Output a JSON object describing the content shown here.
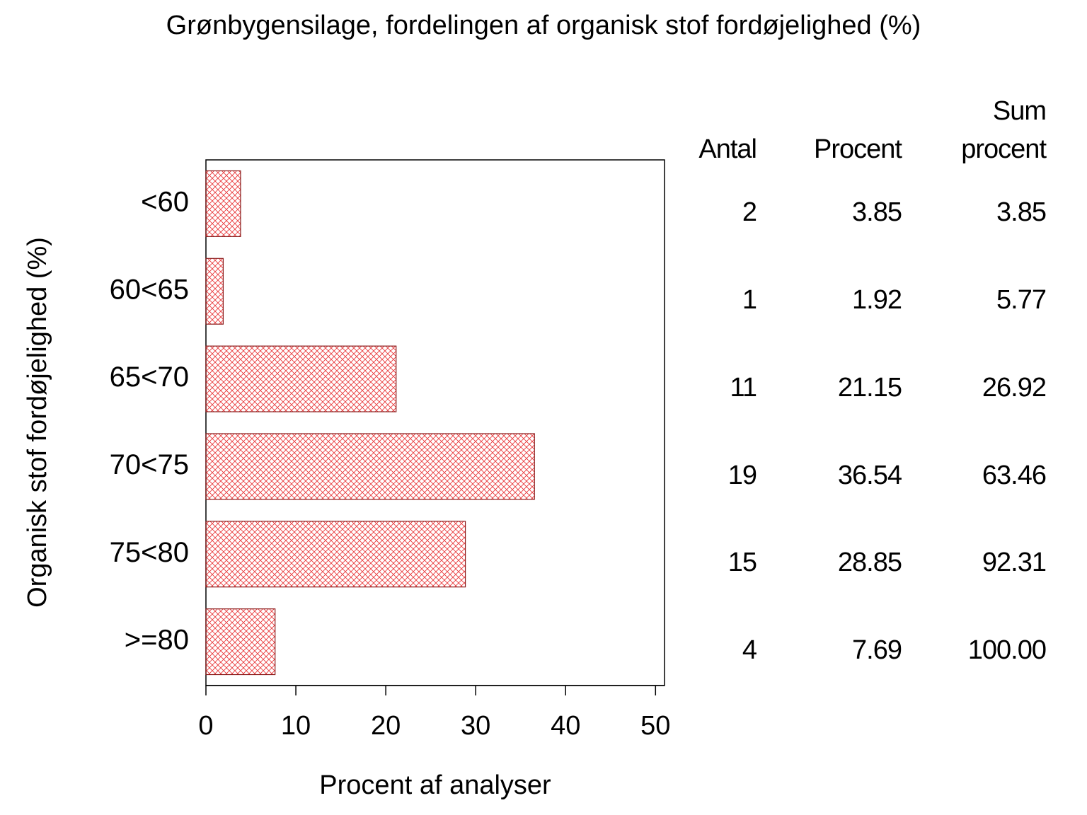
{
  "chart_data": {
    "type": "bar",
    "orientation": "horizontal",
    "title": "Grønbygensilage, fordelingen af organisk stof fordøjelighed (%)",
    "x_label": "Procent af analyser",
    "y_label": "Organisk stof fordøjelighed (%)",
    "categories": [
      "<60",
      "60<65",
      "65<70",
      "70<75",
      "75<80",
      ">=80"
    ],
    "values": [
      3.85,
      1.92,
      21.15,
      36.54,
      28.85,
      7.69
    ],
    "color": "#e8383a",
    "edge_color": "#8b1a1a",
    "xlim": [
      0,
      51
    ],
    "xticks": [
      0,
      10,
      20,
      30,
      40,
      50
    ],
    "table": {
      "headers": [
        "Antal",
        "Procent",
        "Sum procent"
      ],
      "counts": [
        2,
        1,
        11,
        19,
        15,
        4
      ],
      "cumulative": {
        "values": [
          3.85,
          5.77,
          26.92,
          63.46,
          92.31,
          100
        ],
        "value_labels": [
          "3.85",
          "5.77",
          "26.92",
          "63.46",
          "92.31",
          "100.00"
        ]
      }
    }
  }
}
